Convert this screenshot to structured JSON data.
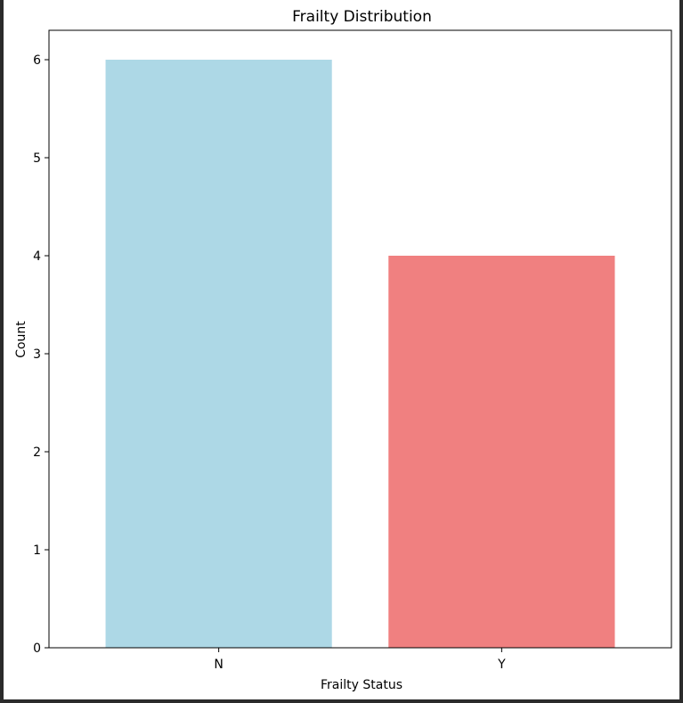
{
  "chart_data": {
    "type": "bar",
    "title": "Frailty Distribution",
    "xlabel": "Frailty Status",
    "ylabel": "Count",
    "categories": [
      "N",
      "Y"
    ],
    "values": [
      6,
      4
    ],
    "colors": [
      "#add8e6",
      "#f08080"
    ],
    "ylim": [
      0,
      6.3
    ],
    "yticks": [
      0,
      1,
      2,
      3,
      4,
      5,
      6
    ],
    "grid": false,
    "legend": "none"
  }
}
